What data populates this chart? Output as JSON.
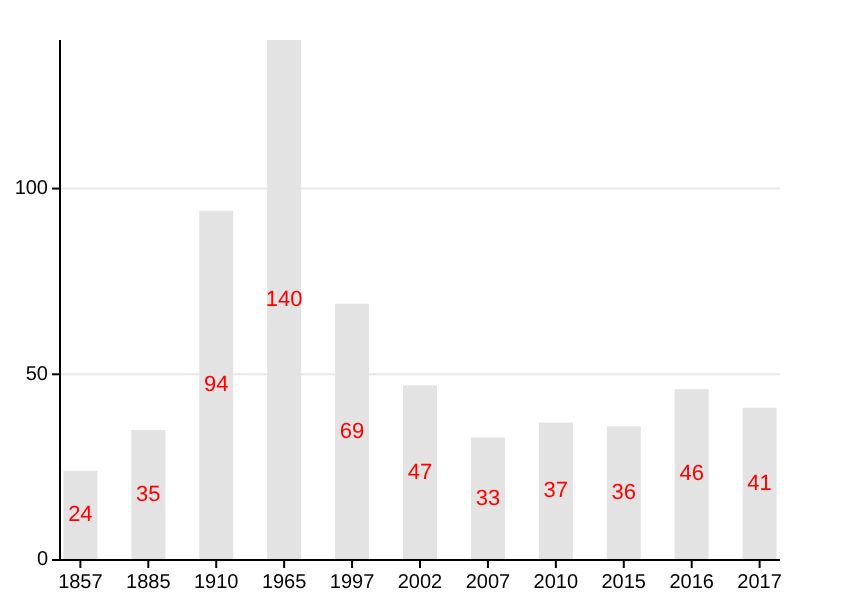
{
  "chart_data": {
    "type": "bar",
    "categories": [
      "1857",
      "1885",
      "1910",
      "1965",
      "1997",
      "2002",
      "2007",
      "2010",
      "2015",
      "2016",
      "2017"
    ],
    "values": [
      24,
      35,
      94,
      140,
      69,
      47,
      33,
      37,
      36,
      46,
      41
    ],
    "color": "#e3e3e3",
    "ylim": [
      0,
      140
    ],
    "yticks": [
      0,
      50,
      100
    ],
    "grid": "y",
    "data_labels": true
  }
}
